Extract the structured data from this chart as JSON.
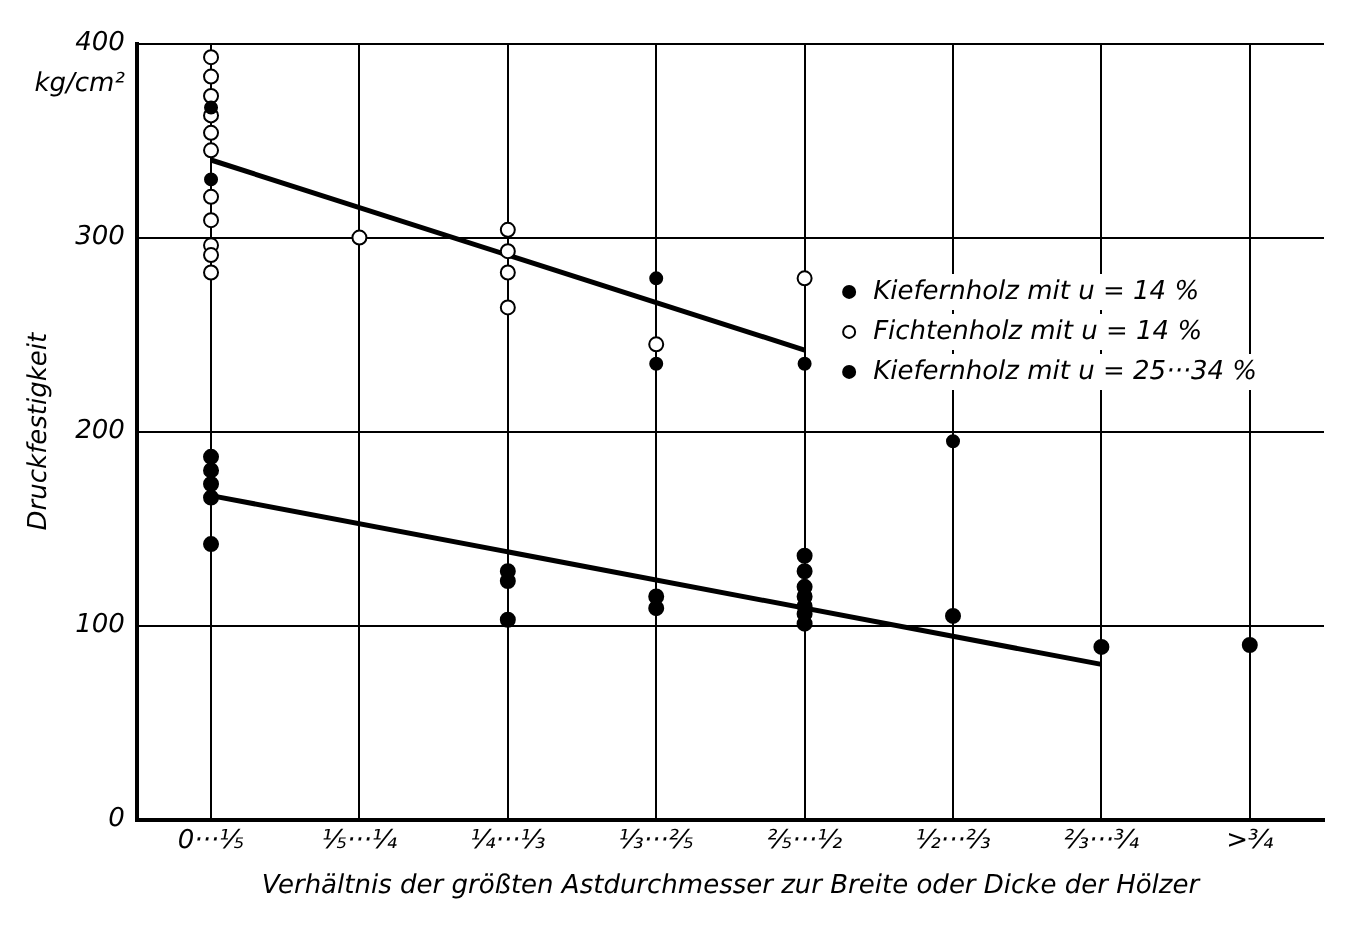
{
  "chart_data": {
    "type": "scatter",
    "xlabel": "Verhältnis der größten Astdurchmesser zur Breite oder Dicke der Hölzer",
    "ylabel": "Druckfestigkeit",
    "annotations": [
      "kg/cm²"
    ],
    "categories": [
      "0···⅕",
      "⅕···¼",
      "¼···⅓",
      "⅓···⅖",
      "⅖···½",
      "½···⅔",
      "⅔···¾",
      ">¾"
    ],
    "ylim": [
      0,
      400
    ],
    "yticks": [
      0,
      100,
      200,
      300,
      400
    ],
    "grid": true,
    "legend": "right",
    "marker": "circle",
    "series": [
      {
        "name": "Kiefernholz mit u = 14 %",
        "color": "#000000",
        "x": [
          "0···⅕",
          "0···⅕",
          "⅓···⅖",
          "⅓···⅖",
          "⅖···½",
          "½···⅔"
        ],
        "values": [
          367,
          330,
          279,
          235,
          235,
          195
        ]
      },
      {
        "name": "Fichtenholz mit u = 14 %",
        "color": "#ffffff",
        "x": [
          "0···⅕",
          "0···⅕",
          "0···⅕",
          "0···⅕",
          "0···⅕",
          "0···⅕",
          "0···⅕",
          "0···⅕",
          "0···⅕",
          "0···⅕",
          "0···⅕",
          "⅕···¼",
          "¼···⅓",
          "¼···⅓",
          "¼···⅓",
          "¼···⅓",
          "⅓···⅖",
          "⅖···½"
        ],
        "values": [
          393,
          383,
          373,
          363,
          354,
          345,
          321,
          309,
          296,
          291,
          282,
          300,
          304,
          293,
          282,
          264,
          245,
          279
        ]
      },
      {
        "name": "Kiefernholz mit u = 25···34 %",
        "color": "#000000",
        "x": [
          "0···⅕",
          "0···⅕",
          "0···⅕",
          "0···⅕",
          "0···⅕",
          "¼···⅓",
          "¼···⅓",
          "¼···⅓",
          "⅓···⅖",
          "⅓···⅖",
          "⅖···½",
          "⅖···½",
          "⅖···½",
          "⅖···½",
          "⅖···½",
          "⅖···½",
          "⅖···½",
          "½···⅔",
          "⅔···¾",
          ">¾"
        ],
        "values": [
          187,
          180,
          173,
          166,
          142,
          128,
          123,
          103,
          115,
          109,
          136,
          128,
          120,
          115,
          110,
          106,
          101,
          105,
          89,
          90
        ]
      },
      {
        "type": "line",
        "marker": "none",
        "color": "#000000",
        "x": [
          "0···⅕",
          "⅖···½"
        ],
        "values": [
          340,
          242
        ]
      },
      {
        "type": "line",
        "marker": "none",
        "color": "#000000",
        "x": [
          "0···⅕",
          "⅔···¾"
        ],
        "values": [
          167,
          80
        ]
      }
    ]
  }
}
